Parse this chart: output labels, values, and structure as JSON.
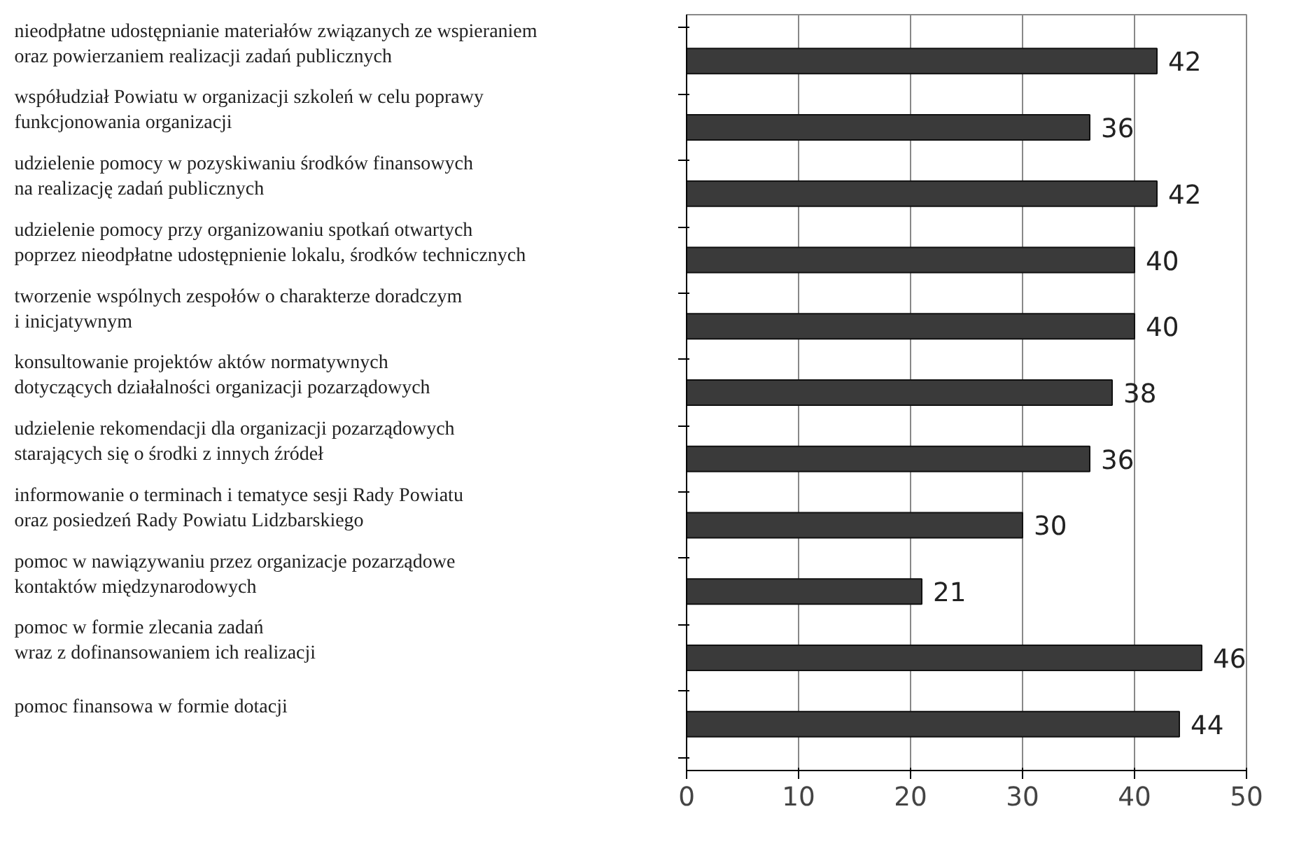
{
  "chart_data": {
    "type": "bar",
    "orientation": "horizontal",
    "categories": [
      "nieodpłatne udostępnianie materiałów związanych ze wspieraniem\noraz powierzaniem realizacji zadań publicznych",
      "współudział Powiatu w organizacji szkoleń w celu poprawy\nfunkcjonowania organizacji",
      "udzielenie pomocy w pozyskiwaniu środków finansowych\nna realizację zadań publicznych",
      "udzielenie pomocy przy organizowaniu spotkań otwartych\npoprzez nieodpłatne udostępnienie lokalu, środków technicznych",
      "tworzenie wspólnych zespołów o charakterze doradczym\ni inicjatywnym",
      "konsultowanie projektów aktów normatywnych\ndotyczących działalności organizacji pozarządowych",
      "udzielenie rekomendacji dla organizacji pozarządowych\nstarających się o środki z innych źródeł",
      "informowanie o terminach i tematyce sesji Rady Powiatu\noraz posiedzeń Rady Powiatu Lidzbarskiego",
      "pomoc w nawiązywaniu przez organizacje pozarządowe\nkontaktów międzynarodowych",
      "pomoc w formie zlecania zadań\nwraz z dofinansowaniem ich realizacji",
      "pomoc finansowa w formie dotacji"
    ],
    "values": [
      42,
      36,
      42,
      40,
      40,
      38,
      36,
      30,
      21,
      46,
      44
    ],
    "color": "#3a3a3a",
    "xlim": [
      0,
      50
    ],
    "xticks": [
      0,
      10,
      20,
      30,
      40,
      50
    ],
    "grid": "x",
    "data_labels": true
  }
}
